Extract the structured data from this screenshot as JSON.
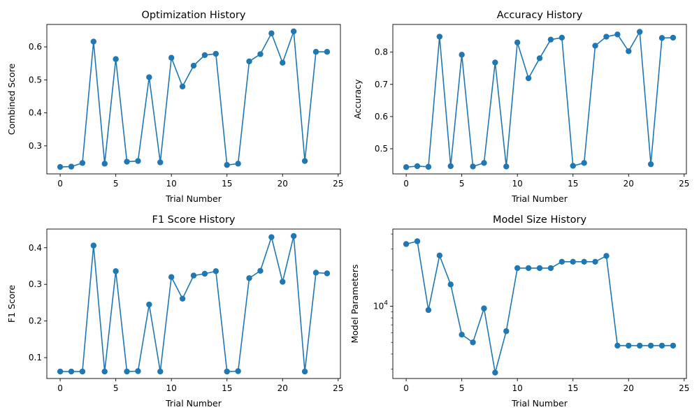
{
  "colors": {
    "series": "#1f77b4",
    "axes": "#000000",
    "background": "#ffffff"
  },
  "chart_data": [
    {
      "type": "line",
      "title": "Optimization History",
      "xlabel": "Trial Number",
      "ylabel": "Combined Score",
      "xlim": [
        -1.2,
        25.2
      ],
      "ylim": [
        0.215,
        0.668
      ],
      "xticks": [
        0,
        5,
        10,
        15,
        20,
        25
      ],
      "yticks": [
        0.3,
        0.4,
        0.5,
        0.6
      ],
      "ytick_labels": [
        "0.3",
        "0.4",
        "0.5",
        "0.6"
      ],
      "x": [
        0,
        1,
        2,
        3,
        4,
        5,
        6,
        7,
        8,
        9,
        10,
        11,
        12,
        13,
        14,
        15,
        16,
        17,
        18,
        19,
        20,
        21,
        22,
        23,
        24
      ],
      "y": [
        0.236,
        0.237,
        0.248,
        0.616,
        0.246,
        0.563,
        0.252,
        0.254,
        0.508,
        0.25,
        0.567,
        0.48,
        0.543,
        0.575,
        0.579,
        0.242,
        0.246,
        0.556,
        0.578,
        0.641,
        0.552,
        0.647,
        0.254,
        0.585,
        0.585
      ],
      "grid": false
    },
    {
      "type": "line",
      "title": "Accuracy History",
      "xlabel": "Trial Number",
      "ylabel": "Accuracy",
      "xlim": [
        -1.2,
        25.2
      ],
      "ylim": [
        0.422,
        0.886
      ],
      "xticks": [
        0,
        5,
        10,
        15,
        20,
        25
      ],
      "yticks": [
        0.5,
        0.6,
        0.7,
        0.8
      ],
      "ytick_labels": [
        "0.5",
        "0.6",
        "0.7",
        "0.8"
      ],
      "x": [
        0,
        1,
        2,
        3,
        4,
        5,
        6,
        7,
        8,
        9,
        10,
        11,
        12,
        13,
        14,
        15,
        16,
        17,
        18,
        19,
        20,
        21,
        22,
        23,
        24
      ],
      "y": [
        0.443,
        0.446,
        0.444,
        0.848,
        0.446,
        0.792,
        0.445,
        0.456,
        0.768,
        0.445,
        0.83,
        0.719,
        0.781,
        0.839,
        0.845,
        0.447,
        0.456,
        0.82,
        0.848,
        0.855,
        0.803,
        0.863,
        0.452,
        0.844,
        0.845
      ],
      "grid": false
    },
    {
      "type": "line",
      "title": "F1 Score History",
      "xlabel": "Trial Number",
      "ylabel": "F1 Score",
      "xlim": [
        -1.2,
        25.2
      ],
      "ylim": [
        0.043,
        0.451
      ],
      "xticks": [
        0,
        5,
        10,
        15,
        20,
        25
      ],
      "yticks": [
        0.1,
        0.2,
        0.3,
        0.4
      ],
      "ytick_labels": [
        "0.1",
        "0.2",
        "0.3",
        "0.4"
      ],
      "x": [
        0,
        1,
        2,
        3,
        4,
        5,
        6,
        7,
        8,
        9,
        10,
        11,
        12,
        13,
        14,
        15,
        16,
        17,
        18,
        19,
        20,
        21,
        22,
        23,
        24
      ],
      "y": [
        0.062,
        0.062,
        0.062,
        0.406,
        0.062,
        0.336,
        0.062,
        0.063,
        0.245,
        0.062,
        0.32,
        0.261,
        0.324,
        0.329,
        0.336,
        0.062,
        0.063,
        0.317,
        0.337,
        0.429,
        0.307,
        0.432,
        0.062,
        0.332,
        0.33
      ],
      "grid": false
    },
    {
      "type": "line",
      "title": "Model Size History",
      "xlabel": "Trial Number",
      "ylabel": "Model Parameters",
      "yscale": "log",
      "xlim": [
        -1.2,
        25.2
      ],
      "ylim": [
        2500,
        44000
      ],
      "xticks": [
        0,
        5,
        10,
        15,
        20,
        25
      ],
      "yticks": [
        10000
      ],
      "ytick_labels": [
        "10^4"
      ],
      "x": [
        0,
        1,
        2,
        3,
        4,
        5,
        6,
        7,
        8,
        9,
        10,
        11,
        12,
        13,
        14,
        15,
        16,
        17,
        18,
        19,
        20,
        21,
        22,
        23,
        24
      ],
      "y": [
        33000,
        34800,
        9300,
        26500,
        15200,
        5800,
        5000,
        9600,
        2800,
        6200,
        20800,
        20800,
        20800,
        20800,
        23500,
        23500,
        23500,
        23500,
        26300,
        4700,
        4700,
        4700,
        4700,
        4700,
        4700
      ],
      "grid": false
    }
  ]
}
